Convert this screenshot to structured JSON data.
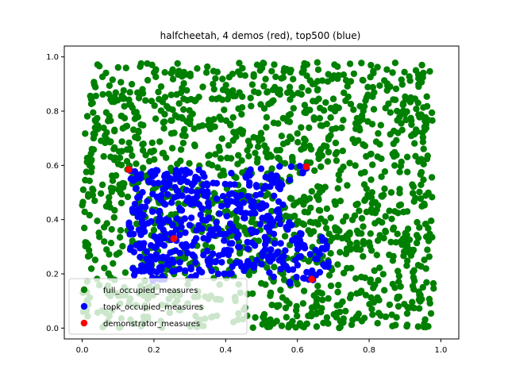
{
  "chart_data": {
    "type": "scatter",
    "title": "halfcheetah, 4 demos (red), top500 (blue)",
    "xlabel": "",
    "ylabel": "",
    "xlim": [
      -0.05,
      1.05
    ],
    "ylim": [
      -0.04,
      1.04
    ],
    "x_ticks": [
      0.0,
      0.2,
      0.4,
      0.6,
      0.8,
      1.0
    ],
    "y_ticks": [
      0.0,
      0.2,
      0.4,
      0.6,
      0.8,
      1.0
    ],
    "x_tick_labels": [
      "0.0",
      "0.2",
      "0.4",
      "0.6",
      "0.8",
      "1.0"
    ],
    "y_tick_labels": [
      "0.0",
      "0.2",
      "0.4",
      "0.6",
      "0.8",
      "1.0"
    ],
    "grid": false,
    "legend_position": "lower-left",
    "series": [
      {
        "name": "full_occupied_measures",
        "color": "#008000",
        "description_count": 1500,
        "region": {
          "x": [
            0.0,
            0.98
          ],
          "y": [
            0.0,
            0.98
          ]
        }
      },
      {
        "name": "topk_occupied_measures",
        "color": "#0000ff",
        "description_count": 500,
        "region_polygon": [
          [
            0.13,
            0.58
          ],
          [
            0.6,
            0.6
          ],
          [
            0.64,
            0.6
          ],
          [
            0.56,
            0.5
          ],
          [
            0.56,
            0.4
          ],
          [
            0.68,
            0.33
          ],
          [
            0.69,
            0.23
          ],
          [
            0.64,
            0.17
          ],
          [
            0.55,
            0.16
          ],
          [
            0.5,
            0.21
          ],
          [
            0.35,
            0.19
          ],
          [
            0.2,
            0.17
          ],
          [
            0.14,
            0.18
          ],
          [
            0.13,
            0.3
          ]
        ]
      },
      {
        "name": "demonstrator_measures",
        "color": "#ff0000",
        "points": [
          {
            "x": 0.13,
            "y": 0.585
          },
          {
            "x": 0.625,
            "y": 0.595
          },
          {
            "x": 0.255,
            "y": 0.33
          },
          {
            "x": 0.64,
            "y": 0.18
          }
        ]
      }
    ]
  }
}
